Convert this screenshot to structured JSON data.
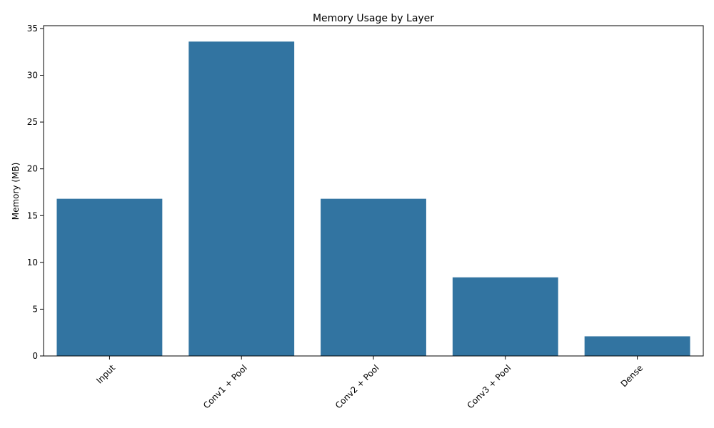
{
  "colors": {
    "bar": "#3274a1",
    "axis": "#000000",
    "background": "#ffffff"
  },
  "chart_data": {
    "type": "bar",
    "title": "Memory Usage by Layer",
    "xlabel": "",
    "ylabel": "Memory (MB)",
    "categories": [
      "Input",
      "Conv1 + Pool",
      "Conv2 + Pool",
      "Conv3 + Pool",
      "Dense"
    ],
    "values": [
      16.8,
      33.6,
      16.8,
      8.4,
      2.1
    ],
    "ylim": [
      0,
      35.3
    ],
    "yticks": [
      0,
      5,
      10,
      15,
      20,
      25,
      30,
      35
    ],
    "grid": false,
    "legend": "none"
  }
}
